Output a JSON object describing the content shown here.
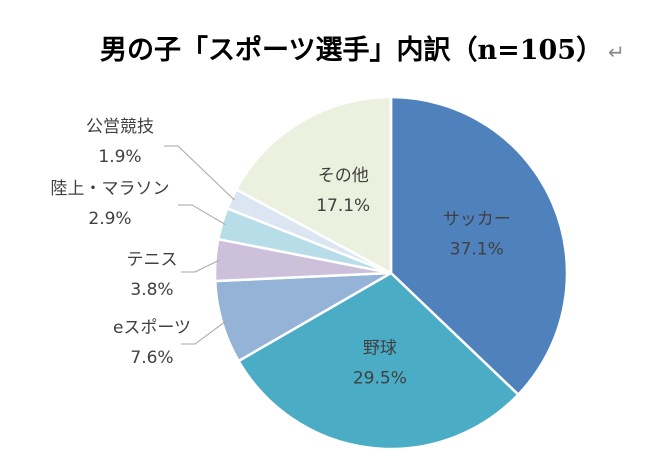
{
  "title": "男の子「スポーツ選手」内訳（n=105）",
  "return_mark": "↵",
  "chart_data": {
    "type": "pie",
    "title": "男の子「スポーツ選手」内訳（n=105）",
    "start_angle_deg": 0,
    "direction": "clockwise",
    "slices": [
      {
        "label": "サッカー",
        "value": 37.1,
        "value_label": "37.1%",
        "color": "#4f81bd",
        "label_position": "inside"
      },
      {
        "label": "野球",
        "value": 29.5,
        "value_label": "29.5%",
        "color": "#4bacc6",
        "label_position": "inside"
      },
      {
        "label": "eスポーツ",
        "value": 7.6,
        "value_label": "7.6%",
        "color": "#95b3d7",
        "label_position": "outside"
      },
      {
        "label": "テニス",
        "value": 3.8,
        "value_label": "3.8%",
        "color": "#ccc0da",
        "label_position": "outside"
      },
      {
        "label": "陸上・マラソン",
        "value": 2.9,
        "value_label": "2.9%",
        "color": "#b7dee8",
        "label_position": "outside"
      },
      {
        "label": "公営競技",
        "value": 1.9,
        "value_label": "1.9%",
        "color": "#dce6f2",
        "label_position": "outside"
      },
      {
        "label": "その他",
        "value": 17.1,
        "value_label": "17.1%",
        "color": "#ebf1de",
        "label_position": "inside"
      }
    ]
  }
}
